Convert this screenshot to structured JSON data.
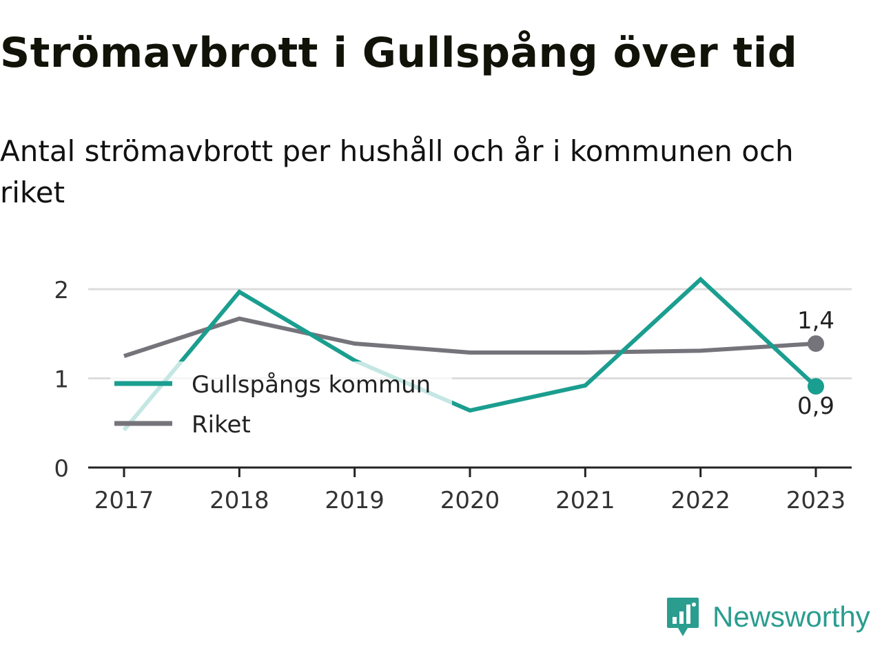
{
  "title": "Strömavbrott i Gullspång över tid",
  "subtitle": "Antal strömavbrott per hushåll och år i kommunen och riket",
  "brand": {
    "name": "Newsworthy",
    "icon": "newsworthy-logo-icon",
    "color": "#2a9d8f"
  },
  "chart_data": {
    "type": "line",
    "x": [
      "2017",
      "2018",
      "2019",
      "2020",
      "2021",
      "2022",
      "2023"
    ],
    "ylim": [
      0,
      2.2
    ],
    "yticks": [
      "0",
      "1",
      "2"
    ],
    "grid": true,
    "legend_position": "bottom-left",
    "series": [
      {
        "name": "Gullspångs kommun",
        "color": "#1a9e8f",
        "values": [
          0.42,
          1.97,
          1.2,
          0.64,
          0.92,
          2.11,
          0.91
        ],
        "end_label": "0,9"
      },
      {
        "name": "Riket",
        "color": "#76747b",
        "values": [
          1.25,
          1.67,
          1.39,
          1.29,
          1.29,
          1.31,
          1.39
        ],
        "end_label": "1,4"
      }
    ]
  }
}
